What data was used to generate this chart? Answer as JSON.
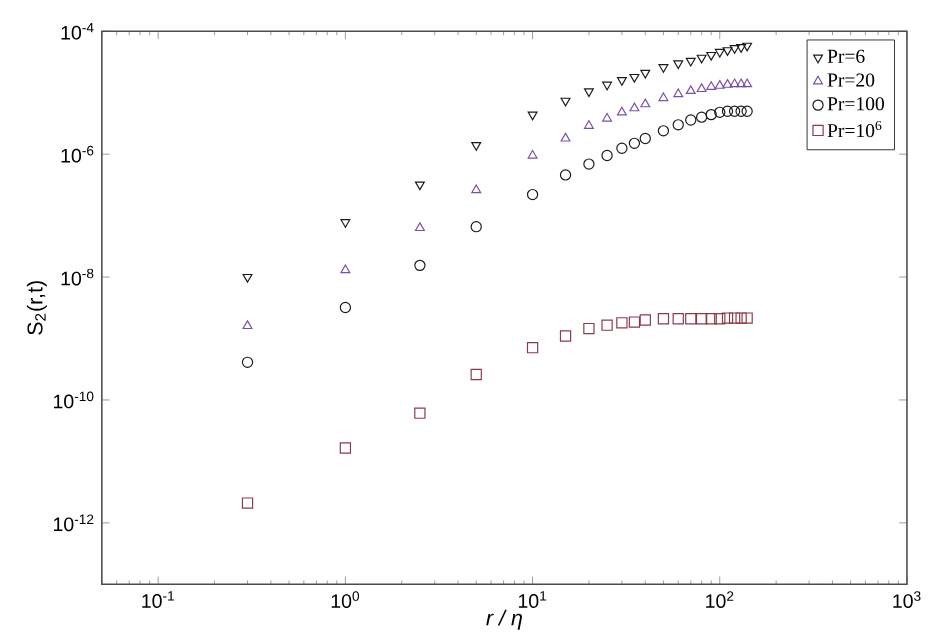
{
  "chart_data": {
    "type": "scatter",
    "xlabel": "r / η",
    "ylabel": "S$_{2}$(r,t)",
    "log": "xy",
    "x": [
      0.3,
      1,
      2.5,
      5,
      10,
      15,
      20,
      25,
      30,
      35,
      40,
      50,
      60,
      70,
      80,
      90,
      100,
      110,
      120,
      130,
      140
    ],
    "xlim": [
      0.05,
      1000
    ],
    "ylim": [
      1e-13,
      0.0001
    ],
    "xticks": [
      {
        "value": 0.1,
        "label": "10$^{-1}$"
      },
      {
        "value": 1,
        "label": "10$^{0}$"
      },
      {
        "value": 10,
        "label": "10$^{1}$"
      },
      {
        "value": 100,
        "label": "10$^{2}$"
      },
      {
        "value": 1000,
        "label": "10$^{3}$"
      }
    ],
    "yticks": [
      {
        "value": 1e-12,
        "label": "10$^{-12}$"
      },
      {
        "value": 1e-10,
        "label": "10$^{-10}$"
      },
      {
        "value": 1e-08,
        "label": "10$^{-8}$"
      },
      {
        "value": 1e-06,
        "label": "10$^{-6}$"
      },
      {
        "value": 0.0001,
        "label": "10$^{-4}$"
      }
    ],
    "legend": "top right",
    "grid": false,
    "series": [
      {
        "name": "Pr=6",
        "color": "#1a1a1a",
        "marker": "triangle-down",
        "values": [
          1e-08,
          7.8e-08,
          3.2e-07,
          1.4e-06,
          4.4e-06,
          7.4e-06,
          1.05e-05,
          1.35e-05,
          1.6e-05,
          1.8e-05,
          2.1e-05,
          2.6e-05,
          3e-05,
          3.3e-05,
          3.7e-05,
          4.1e-05,
          4.6e-05,
          4.9e-05,
          5.3e-05,
          5.5e-05,
          5.8e-05
        ]
      },
      {
        "name": "Pr=20",
        "color": "#7b4fa8",
        "marker": "triangle",
        "values": [
          1.6e-09,
          1.3e-08,
          6.3e-08,
          2.6e-07,
          9.5e-07,
          1.8e-06,
          2.9e-06,
          3.8e-06,
          4.8e-06,
          5.6e-06,
          6.5e-06,
          8.2e-06,
          9.5e-06,
          1.07e-05,
          1.15e-05,
          1.25e-05,
          1.3e-05,
          1.35e-05,
          1.38e-05,
          1.38e-05,
          1.38e-05
        ]
      },
      {
        "name": "Pr=100",
        "color": "#1a1a1a",
        "marker": "circle",
        "values": [
          4.1e-10,
          3.2e-09,
          1.55e-08,
          6.6e-08,
          2.2e-07,
          4.6e-07,
          6.9e-07,
          9.5e-07,
          1.25e-06,
          1.5e-06,
          1.8e-06,
          2.4e-06,
          3e-06,
          3.6e-06,
          4e-06,
          4.4e-06,
          4.8e-06,
          5e-06,
          5e-06,
          5e-06,
          5e-06
        ]
      },
      {
        "name": "Pr=10$^{6}$",
        "color": "#8b3a4a",
        "marker": "square",
        "values": [
          2.1e-12,
          1.65e-11,
          6.1e-11,
          2.6e-10,
          7.1e-10,
          1.1e-09,
          1.45e-09,
          1.65e-09,
          1.8e-09,
          1.85e-09,
          2e-09,
          2.1e-09,
          2.1e-09,
          2.1e-09,
          2.1e-09,
          2.1e-09,
          2.1e-09,
          2.15e-09,
          2.15e-09,
          2.15e-09,
          2.15e-09
        ]
      }
    ]
  }
}
